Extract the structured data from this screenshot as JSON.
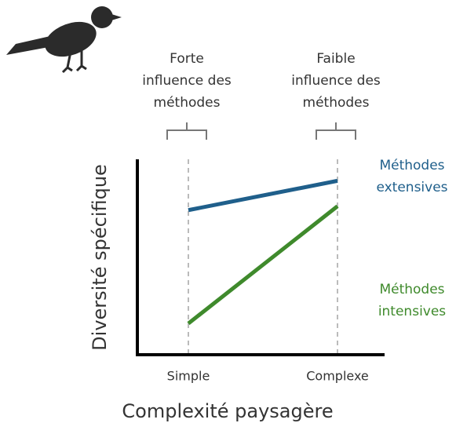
{
  "chart_data": {
    "type": "line",
    "categories": [
      "Simple",
      "Complexe"
    ],
    "x_label": "Complexité paysagère",
    "y_label": "Diversité spécifique",
    "ylim": [
      0,
      100
    ],
    "annotations": [
      [
        "Forte",
        "influence des",
        "méthodes"
      ],
      [
        "Faible",
        "influence des",
        "méthodes"
      ]
    ],
    "series": [
      {
        "name": "Méthodes extensives",
        "color": "#1f5f8b",
        "values": [
          74,
          89
        ]
      },
      {
        "name": "Méthodes intensives",
        "color": "#3f8a2c",
        "values": [
          16,
          76
        ]
      }
    ]
  }
}
